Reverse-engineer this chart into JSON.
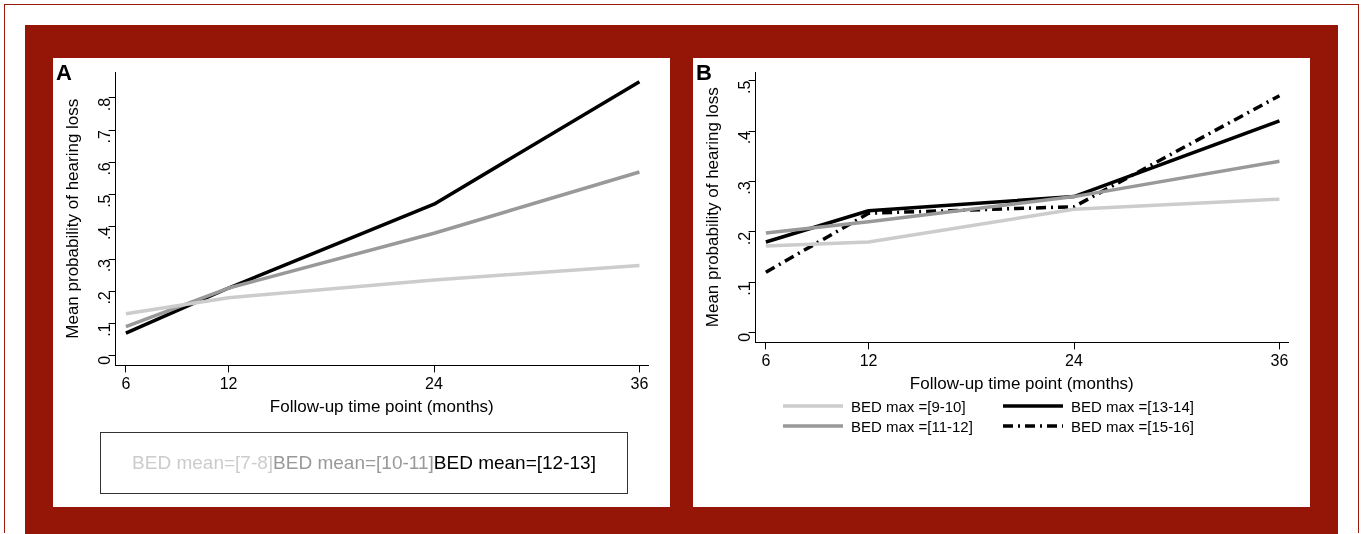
{
  "chart_data": [
    {
      "type": "line",
      "title": "A",
      "xlabel": "Follow-up time point (months)",
      "ylabel": "Mean probability of hearing loss",
      "x": [
        6,
        12,
        24,
        36
      ],
      "xlim": [
        5.4,
        36.5
      ],
      "xticks": [
        6,
        12,
        24,
        36
      ],
      "ylim": [
        -0.03,
        0.88
      ],
      "yticks": [
        0,
        {
          "value": 0.1,
          "label": ".1"
        },
        {
          "value": 0.2,
          "label": ".2"
        },
        {
          "value": 0.3,
          "label": ".3"
        },
        {
          "value": 0.4,
          "label": ".4"
        },
        {
          "value": 0.5,
          "label": ".5"
        },
        {
          "value": 0.6,
          "label": ".6"
        },
        {
          "value": 0.7,
          "label": ".7"
        },
        {
          "value": 0.8,
          "label": ".8"
        }
      ],
      "grid": false,
      "legend": "bottom",
      "marker": "none",
      "series": [
        {
          "name": "BED mean=[7-8]",
          "color": "#cccccc",
          "values": [
            0.13,
            0.18,
            0.235,
            0.28
          ]
        },
        {
          "name": "BED mean=[10-11]",
          "color": "#999999",
          "values": [
            0.09,
            0.21,
            0.38,
            0.57
          ]
        },
        {
          "name": "BED mean=[12-13]",
          "color": "#000000",
          "values": [
            0.07,
            0.21,
            0.47,
            0.85
          ]
        }
      ]
    },
    {
      "type": "line",
      "title": "B",
      "xlabel": "Follow-up time point (months)",
      "ylabel": "Mean probability of hearing loss",
      "x": [
        6,
        12,
        24,
        36
      ],
      "xlim": [
        5.4,
        36.5
      ],
      "xticks": [
        6,
        12,
        24,
        36
      ],
      "ylim": [
        -0.019,
        0.517
      ],
      "yticks": [
        0,
        {
          "value": 0.1,
          "label": ".1"
        },
        {
          "value": 0.2,
          "label": ".2"
        },
        {
          "value": 0.3,
          "label": ".3"
        },
        {
          "value": 0.4,
          "label": ".4"
        },
        {
          "value": 0.5,
          "label": ".5"
        }
      ],
      "grid": false,
      "legend": "bottom",
      "marker": "none",
      "series": [
        {
          "name": "BED max =[9-10]",
          "color": "#cccccc",
          "values": [
            0.172,
            0.18,
            0.245,
            0.265
          ],
          "line_style": "solid"
        },
        {
          "name": "BED max =[11-12]",
          "color": "#999999",
          "values": [
            0.198,
            0.22,
            0.27,
            0.34
          ],
          "line_style": "solid"
        },
        {
          "name": "BED max =[13-14]",
          "color": "#000000",
          "values": [
            0.18,
            0.242,
            0.27,
            0.42
          ],
          "line_style": "solid"
        },
        {
          "name": "BED max =[15-16]",
          "color": "#000000",
          "values": [
            0.12,
            0.237,
            0.25,
            0.47
          ],
          "line_style": "dashed"
        }
      ]
    }
  ]
}
